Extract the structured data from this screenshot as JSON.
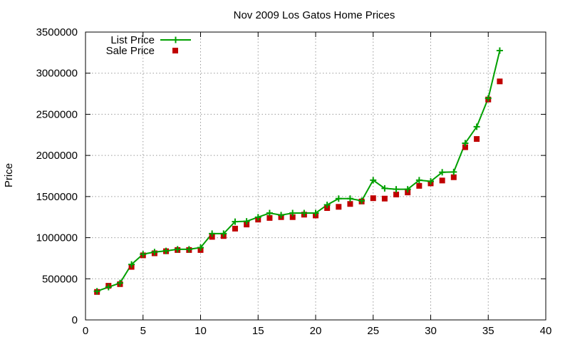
{
  "chart_data": {
    "type": "line",
    "title": "Nov 2009 Los Gatos Home Prices",
    "xlabel": "",
    "ylabel": "Price",
    "xlim": [
      0,
      40
    ],
    "ylim": [
      0,
      3500000
    ],
    "x_ticks": [
      0,
      5,
      10,
      15,
      20,
      25,
      30,
      35,
      40
    ],
    "y_ticks": [
      0,
      500000,
      1000000,
      1500000,
      2000000,
      2500000,
      3000000,
      3500000
    ],
    "grid": true,
    "legend_position": "top-left",
    "series": [
      {
        "name": "List Price",
        "style": "line-with-plus-markers",
        "color": "#00a000",
        "x": [
          1,
          2,
          3,
          4,
          5,
          6,
          7,
          8,
          9,
          10,
          11,
          12,
          13,
          14,
          15,
          16,
          17,
          18,
          19,
          20,
          21,
          22,
          23,
          24,
          25,
          26,
          27,
          28,
          29,
          30,
          31,
          32,
          33,
          34,
          35,
          36
        ],
        "y": [
          349000,
          399000,
          449000,
          675000,
          799000,
          825000,
          839000,
          859000,
          859000,
          879000,
          1049000,
          1049000,
          1195000,
          1199000,
          1249000,
          1299000,
          1275000,
          1299000,
          1299000,
          1299000,
          1399000,
          1475000,
          1475000,
          1449000,
          1699000,
          1599000,
          1589000,
          1589000,
          1699000,
          1685000,
          1795000,
          1799000,
          2149000,
          2349000,
          2695000,
          3275000
        ]
      },
      {
        "name": "Sale Price",
        "style": "square-markers",
        "color": "#c00000",
        "x": [
          1,
          2,
          3,
          4,
          5,
          6,
          7,
          8,
          9,
          10,
          11,
          12,
          13,
          14,
          15,
          16,
          17,
          18,
          19,
          20,
          21,
          22,
          23,
          24,
          25,
          26,
          27,
          28,
          29,
          30,
          31,
          32,
          33,
          34,
          35,
          36
        ],
        "y": [
          340000,
          415000,
          435000,
          645000,
          785000,
          810000,
          835000,
          850000,
          850000,
          850000,
          1010000,
          1020000,
          1110000,
          1160000,
          1220000,
          1240000,
          1250000,
          1250000,
          1280000,
          1270000,
          1360000,
          1375000,
          1410000,
          1440000,
          1480000,
          1475000,
          1525000,
          1550000,
          1630000,
          1660000,
          1695000,
          1735000,
          2100000,
          2200000,
          2680000,
          2900000
        ]
      }
    ]
  }
}
